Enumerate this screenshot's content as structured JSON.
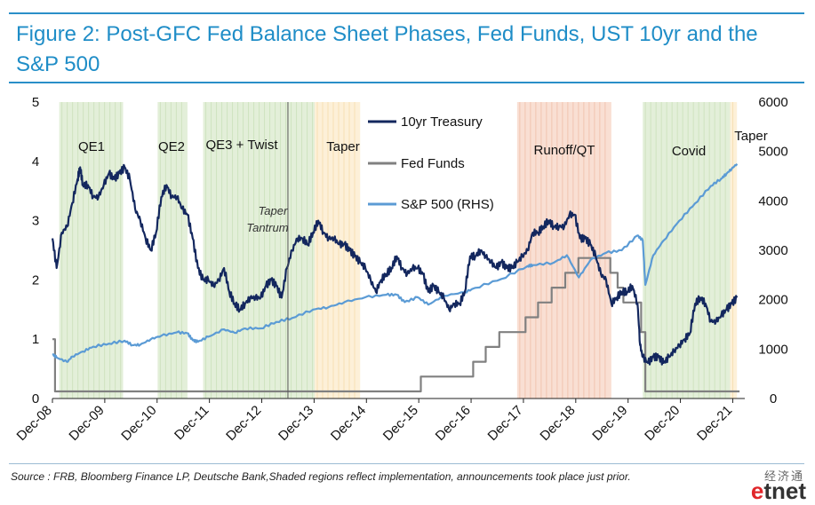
{
  "title": "Figure 2: Post-GFC Fed Balance Sheet Phases, Fed Funds, UST 10yr and the S&P 500",
  "source": "Source : FRB, Bloomberg Finance LP, Deutsche Bank,Shaded regions reflect implementation, announcements took place just prior.",
  "watermark": {
    "chinese": "经济通",
    "logo_e": "e",
    "logo_rest": "tnet"
  },
  "colors": {
    "title": "#1f8dc7",
    "ust10": "#13275e",
    "fedfunds": "#808080",
    "sp500": "#5b9bd5",
    "qe_shade": "#e3efd9",
    "taper_shade": "#fdf0d8",
    "qt_shade": "#f9dfd3"
  },
  "chart_data": {
    "type": "line",
    "x_ticks": [
      "Dec-08",
      "Dec-09",
      "Dec-10",
      "Dec-11",
      "Dec-12",
      "Dec-13",
      "Dec-14",
      "Dec-15",
      "Dec-16",
      "Dec-17",
      "Dec-18",
      "Dec-19",
      "Dec-20",
      "Dec-21"
    ],
    "y_left": {
      "min": 0,
      "max": 5,
      "ticks": [
        "0",
        "1",
        "2",
        "3",
        "4",
        "5"
      ]
    },
    "y_right": {
      "min": 0,
      "max": 6000,
      "ticks": [
        "0",
        "1000",
        "2000",
        "3000",
        "4000",
        "5000",
        "6000"
      ]
    },
    "phases": [
      {
        "label": "QE1",
        "start": 2009.05,
        "end": 2010.27,
        "kind": "qe"
      },
      {
        "label": "QE2",
        "start": 2010.93,
        "end": 2011.5,
        "kind": "qe"
      },
      {
        "label": "QE3 + Twist",
        "start": 2011.8,
        "end": 2013.93,
        "kind": "qe"
      },
      {
        "label": "Taper",
        "start": 2013.93,
        "end": 2014.8,
        "kind": "taper"
      },
      {
        "label": "Runoff/QT",
        "start": 2017.8,
        "end": 2019.6,
        "kind": "qt"
      },
      {
        "label": "Covid",
        "start": 2020.2,
        "end": 2021.87,
        "kind": "qe"
      },
      {
        "label": "Taper",
        "start": 2021.87,
        "end": 2022.0,
        "kind": "taper"
      }
    ],
    "annotation": {
      "text_line1": "Taper",
      "text_line2": "Tantrum",
      "x": 2013.42
    },
    "series": [
      {
        "name": "10yr Treasury",
        "axis": "left",
        "x": [
          2008.92,
          2009.0,
          2009.1,
          2009.2,
          2009.3,
          2009.4,
          2009.45,
          2009.5,
          2009.6,
          2009.7,
          2009.8,
          2009.9,
          2010.0,
          2010.1,
          2010.2,
          2010.3,
          2010.4,
          2010.5,
          2010.6,
          2010.7,
          2010.8,
          2010.9,
          2011.0,
          2011.1,
          2011.2,
          2011.3,
          2011.4,
          2011.5,
          2011.6,
          2011.7,
          2011.8,
          2011.9,
          2012.0,
          2012.1,
          2012.2,
          2012.3,
          2012.4,
          2012.5,
          2012.6,
          2012.7,
          2012.8,
          2012.9,
          2013.0,
          2013.1,
          2013.2,
          2013.3,
          2013.4,
          2013.5,
          2013.6,
          2013.7,
          2013.8,
          2013.9,
          2014.0,
          2014.1,
          2014.2,
          2014.3,
          2014.4,
          2014.5,
          2014.6,
          2014.7,
          2014.8,
          2014.9,
          2015.0,
          2015.1,
          2015.2,
          2015.3,
          2015.4,
          2015.5,
          2015.6,
          2015.7,
          2015.8,
          2015.9,
          2016.0,
          2016.1,
          2016.2,
          2016.3,
          2016.4,
          2016.5,
          2016.6,
          2016.7,
          2016.8,
          2016.9,
          2017.0,
          2017.1,
          2017.2,
          2017.3,
          2017.4,
          2017.5,
          2017.6,
          2017.7,
          2017.8,
          2017.9,
          2018.0,
          2018.1,
          2018.2,
          2018.3,
          2018.4,
          2018.5,
          2018.6,
          2018.7,
          2018.8,
          2018.9,
          2019.0,
          2019.1,
          2019.2,
          2019.3,
          2019.4,
          2019.5,
          2019.6,
          2019.7,
          2019.8,
          2019.9,
          2020.0,
          2020.1,
          2020.15,
          2020.2,
          2020.3,
          2020.4,
          2020.5,
          2020.6,
          2020.7,
          2020.8,
          2020.9,
          2021.0,
          2021.1,
          2021.2,
          2021.3,
          2021.4,
          2021.5,
          2021.6,
          2021.7,
          2021.8,
          2021.9,
          2022.0
        ],
        "values": [
          2.7,
          2.2,
          2.8,
          2.9,
          3.3,
          3.7,
          3.9,
          3.6,
          3.6,
          3.4,
          3.4,
          3.6,
          3.8,
          3.7,
          3.8,
          3.9,
          3.7,
          3.2,
          3.0,
          2.7,
          2.5,
          2.8,
          3.4,
          3.6,
          3.4,
          3.4,
          3.2,
          3.1,
          2.7,
          2.2,
          2.0,
          2.0,
          1.9,
          2.0,
          2.2,
          1.8,
          1.6,
          1.5,
          1.6,
          1.7,
          1.7,
          1.7,
          1.9,
          2.0,
          1.9,
          1.7,
          2.2,
          2.5,
          2.7,
          2.7,
          2.6,
          2.8,
          3.0,
          2.8,
          2.7,
          2.7,
          2.6,
          2.6,
          2.5,
          2.4,
          2.3,
          2.2,
          2.0,
          1.8,
          2.0,
          2.1,
          2.2,
          2.4,
          2.2,
          2.1,
          2.2,
          2.2,
          2.1,
          1.8,
          1.9,
          1.8,
          1.7,
          1.5,
          1.6,
          1.6,
          1.8,
          2.4,
          2.4,
          2.5,
          2.4,
          2.3,
          2.2,
          2.3,
          2.2,
          2.2,
          2.3,
          2.4,
          2.5,
          2.8,
          2.8,
          2.9,
          3.0,
          2.9,
          2.9,
          2.9,
          3.1,
          3.1,
          2.7,
          2.7,
          2.6,
          2.4,
          2.1,
          2.0,
          1.6,
          1.7,
          1.8,
          1.8,
          1.9,
          1.6,
          0.9,
          0.7,
          0.6,
          0.7,
          0.7,
          0.6,
          0.7,
          0.8,
          0.9,
          1.0,
          1.1,
          1.6,
          1.7,
          1.6,
          1.3,
          1.3,
          1.4,
          1.5,
          1.6,
          1.7
        ]
      },
      {
        "name": "Fed Funds",
        "axis": "left",
        "x": [
          2008.92,
          2008.97,
          2008.97,
          2015.96,
          2015.96,
          2016.96,
          2016.96,
          2017.2,
          2017.2,
          2017.46,
          2017.46,
          2017.96,
          2017.96,
          2018.2,
          2018.2,
          2018.46,
          2018.46,
          2018.72,
          2018.72,
          2018.97,
          2018.97,
          2019.58,
          2019.58,
          2019.72,
          2019.72,
          2019.83,
          2019.83,
          2020.17,
          2020.17,
          2020.25,
          2020.25,
          2022.05
        ],
        "values": [
          1.0,
          1.0,
          0.12,
          0.12,
          0.37,
          0.37,
          0.62,
          0.62,
          0.87,
          0.87,
          1.12,
          1.12,
          1.37,
          1.37,
          1.62,
          1.62,
          1.87,
          1.87,
          2.12,
          2.12,
          2.37,
          2.37,
          2.12,
          2.12,
          1.87,
          1.87,
          1.62,
          1.62,
          1.12,
          1.12,
          0.12,
          0.12
        ]
      },
      {
        "name": "S&P 500 (RHS)",
        "axis": "right",
        "x": [
          2008.92,
          2009.0,
          2009.2,
          2009.3,
          2009.5,
          2009.7,
          2010.0,
          2010.3,
          2010.45,
          2010.6,
          2010.8,
          2011.0,
          2011.3,
          2011.5,
          2011.6,
          2011.7,
          2011.9,
          2012.2,
          2012.4,
          2012.6,
          2012.9,
          2013.2,
          2013.5,
          2013.9,
          2014.2,
          2014.5,
          2014.9,
          2015.3,
          2015.5,
          2015.65,
          2015.9,
          2016.1,
          2016.4,
          2016.8,
          2017.0,
          2017.5,
          2018.0,
          2018.1,
          2018.5,
          2018.75,
          2018.98,
          2019.2,
          2019.5,
          2019.8,
          2020.1,
          2020.2,
          2020.25,
          2020.4,
          2020.6,
          2020.9,
          2021.2,
          2021.5,
          2021.7,
          2021.8,
          2021.9,
          2022.0
        ],
        "values": [
          900,
          830,
          740,
          850,
          950,
          1050,
          1110,
          1170,
          1080,
          1090,
          1200,
          1270,
          1340,
          1320,
          1180,
          1150,
          1250,
          1400,
          1330,
          1420,
          1420,
          1550,
          1630,
          1800,
          1850,
          1950,
          2050,
          2100,
          2100,
          1950,
          2050,
          1900,
          2080,
          2150,
          2240,
          2420,
          2680,
          2700,
          2750,
          2900,
          2450,
          2800,
          2950,
          3000,
          3300,
          3200,
          2300,
          2900,
          3200,
          3600,
          3950,
          4300,
          4450,
          4550,
          4650,
          4750
        ]
      }
    ]
  }
}
